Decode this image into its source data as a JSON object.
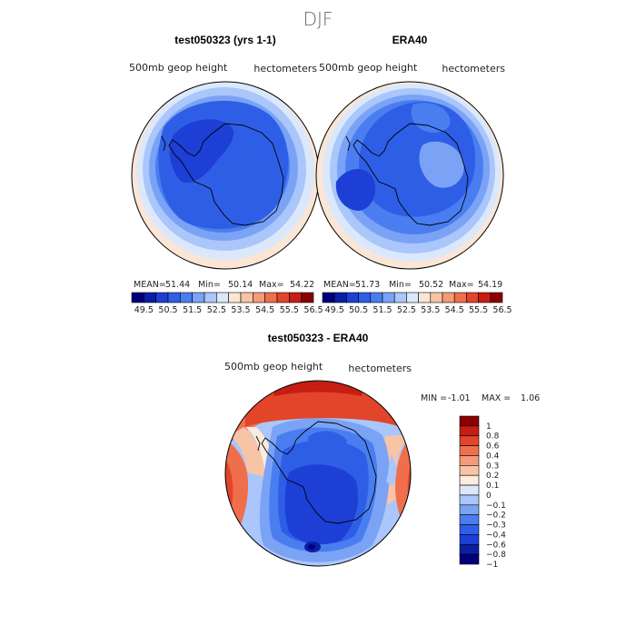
{
  "title": "DJF",
  "colors": {
    "base_palette": [
      "#00007a",
      "#0a1fa6",
      "#1d3fd6",
      "#2f5ee6",
      "#4a7ef0",
      "#7aa3f5",
      "#aac6fa",
      "#dbe8fc",
      "#fbe6d6",
      "#f8c4a6",
      "#f59a7a",
      "#ef6f4d",
      "#e2452a",
      "#c61e12",
      "#8a0000"
    ],
    "diff_palette": [
      "#00007a",
      "#0a1fa6",
      "#1d3fd6",
      "#2f5ee6",
      "#4a7ef0",
      "#7aa3f5",
      "#aac6fa",
      "#dbe8fc",
      "#fdebdc",
      "#f8c4a6",
      "#f59a7a",
      "#ef6f4d",
      "#e2452a",
      "#c61e12",
      "#8a0000"
    ]
  },
  "panels": [
    {
      "title": "test050323 (yrs 1-1)",
      "variable": "500mb geop height",
      "units": "hectometers",
      "stats": {
        "mean_label": "MEAN=",
        "mean": "51.44",
        "min_label": "Min=",
        "min": "50.14",
        "max_label": "Max=",
        "max": "54.22"
      },
      "colorbar_labels": [
        "49.5",
        "50.5",
        "51.5",
        "52.5",
        "53.5",
        "54.5",
        "55.5",
        "56.5"
      ]
    },
    {
      "title": "ERA40",
      "variable": "500mb geop height",
      "units": "hectometers",
      "stats": {
        "mean_label": "MEAN=",
        "mean": "51.73",
        "min_label": "Min=",
        "min": "50.52",
        "max_label": "Max=",
        "max": "54.19"
      },
      "colorbar_labels": [
        "49.5",
        "50.5",
        "51.5",
        "52.5",
        "53.5",
        "54.5",
        "55.5",
        "56.5"
      ]
    }
  ],
  "diff": {
    "title": "test050323 - ERA40",
    "variable": "500mb geop height",
    "units": "hectometers",
    "stats": {
      "min_label": "MIN =",
      "min": "-1.01",
      "max_label": "MAX =",
      "max": "1.06"
    },
    "colorbar_labels": [
      "1",
      "0.8",
      "0.6",
      "0.4",
      "0.3",
      "0.2",
      "0.1",
      "0",
      "−0.1",
      "−0.2",
      "−0.3",
      "−0.4",
      "−0.6",
      "−0.8",
      "−1"
    ]
  }
}
